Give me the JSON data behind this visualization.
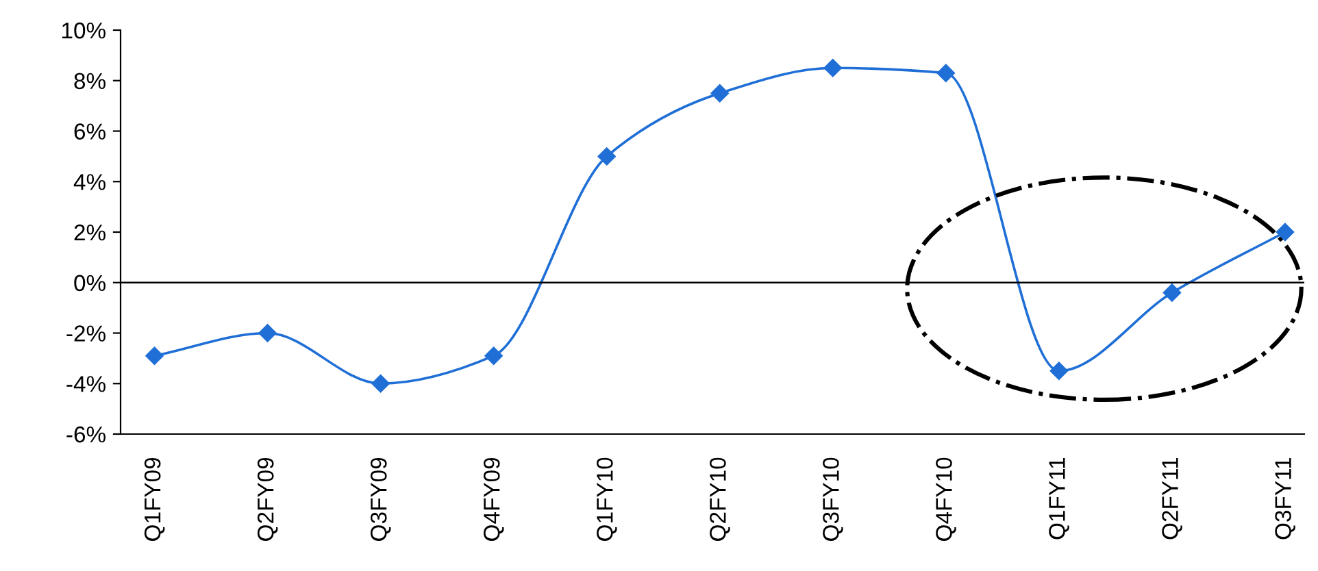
{
  "chart_data": {
    "type": "line",
    "categories": [
      "Q1FY09",
      "Q2FY09",
      "Q3FY09",
      "Q4FY09",
      "Q1FY10",
      "Q2FY10",
      "Q3FY10",
      "Q4FY10",
      "Q1FY11",
      "Q2FY11",
      "Q3FY11"
    ],
    "series": [
      {
        "color": "#1f6fd6",
        "values": [
          -2.9,
          -2.0,
          -4.0,
          -2.9,
          5.0,
          7.5,
          8.5,
          8.3,
          -3.5,
          -0.4,
          2.0
        ]
      }
    ],
    "ylim": [
      -6,
      10
    ],
    "yticks": [
      {
        "value": -6,
        "label": "-6%"
      },
      {
        "value": -4,
        "label": "-4%"
      },
      {
        "value": -2,
        "label": "-2%"
      },
      {
        "value": 0,
        "label": "0%"
      },
      {
        "value": 2,
        "label": "2%"
      },
      {
        "value": 4,
        "label": "4%"
      },
      {
        "value": 6,
        "label": "6%"
      },
      {
        "value": 8,
        "label": "8%"
      },
      {
        "value": 10,
        "label": "10%"
      }
    ],
    "ref_lines": [
      {
        "axis": "y",
        "value": 0,
        "color": "#000000"
      }
    ],
    "marker": "diamond",
    "line_style": "solid",
    "grid": false,
    "legend": false
  }
}
